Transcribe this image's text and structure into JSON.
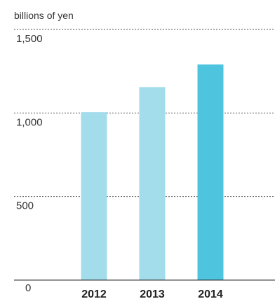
{
  "chart_data": {
    "type": "bar",
    "unit_label": "billions of yen",
    "categories": [
      "2012",
      "2013",
      "2014"
    ],
    "values": [
      1005,
      1155,
      1290
    ],
    "ylim": [
      0,
      1500
    ],
    "yticks": [
      0,
      500,
      1000,
      1500
    ],
    "ytick_labels": [
      "0",
      "500",
      "1,000",
      "1,500"
    ],
    "bar_colors": [
      "#a3dcea",
      "#a3dcea",
      "#4fc4de"
    ],
    "grid": true
  }
}
